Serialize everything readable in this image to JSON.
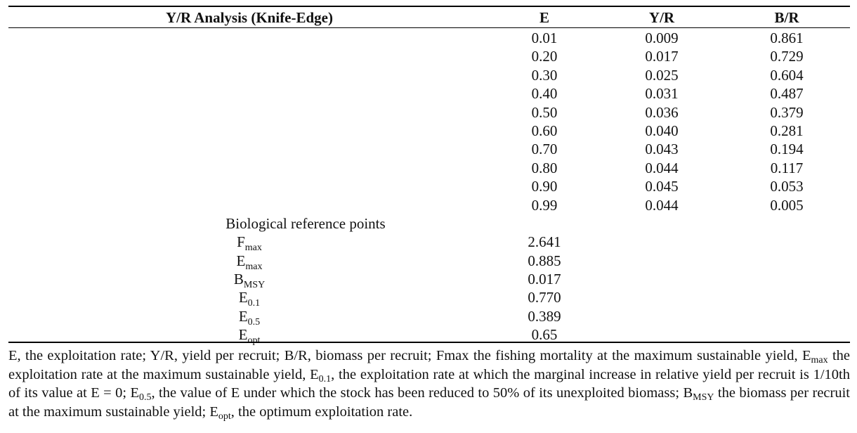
{
  "header": {
    "analysis": "Y/R Analysis (Knife-Edge)",
    "e": "E",
    "yr": "Y/R",
    "br": "B/R"
  },
  "rows": [
    {
      "e": "0.01",
      "yr": "0.009",
      "br": "0.861"
    },
    {
      "e": "0.20",
      "yr": "0.017",
      "br": "0.729"
    },
    {
      "e": "0.30",
      "yr": "0.025",
      "br": "0.604"
    },
    {
      "e": "0.40",
      "yr": "0.031",
      "br": "0.487"
    },
    {
      "e": "0.50",
      "yr": "0.036",
      "br": "0.379"
    },
    {
      "e": "0.60",
      "yr": "0.040",
      "br": "0.281"
    },
    {
      "e": "0.70",
      "yr": "0.043",
      "br": "0.194"
    },
    {
      "e": "0.80",
      "yr": "0.044",
      "br": "0.117"
    },
    {
      "e": "0.90",
      "yr": "0.045",
      "br": "0.053"
    },
    {
      "e": "0.99",
      "yr": "0.044",
      "br": "0.005"
    }
  ],
  "brp": {
    "title": "Biological reference points",
    "items": [
      {
        "sym": "F",
        "sub": "max",
        "value": "2.641"
      },
      {
        "sym": "E",
        "sub": "max",
        "value": "0.885"
      },
      {
        "sym": "B",
        "sub": "MSY",
        "value": "0.017"
      },
      {
        "sym": "E",
        "sub": "0.1",
        "value": "0.770"
      },
      {
        "sym": "E",
        "sub": "0.5",
        "value": "0.389"
      },
      {
        "sym": "E",
        "sub": "opt",
        "value": "0.65"
      }
    ]
  },
  "note": {
    "p1": "E, the exploitation rate; Y/R, yield per recruit; B/R, biomass per recruit; Fmax the fishing mortality at the maximum sustainable yield, ",
    "emax_sym": "E",
    "emax_sub": "max",
    "p2": " the exploitation rate at the maximum sustainable yield, ",
    "e01_sym": "E",
    "e01_sub": "0.1",
    "p3": ", the exploitation rate at which the marginal increase in relative yield per recruit is 1/10th of its value at E = 0; ",
    "e05_sym": "E",
    "e05_sub": "0.5",
    "p4": ", the value of E under which the stock has been reduced to 50% of its unexploited biomass; ",
    "bmsy_sym": "B",
    "bmsy_sub": "MSY",
    "p5": " the biomass per recruit at the maximum sustainable yield; ",
    "eopt_sym": "E",
    "eopt_sub": "opt",
    "p6": ", the optimum exploitation rate."
  }
}
